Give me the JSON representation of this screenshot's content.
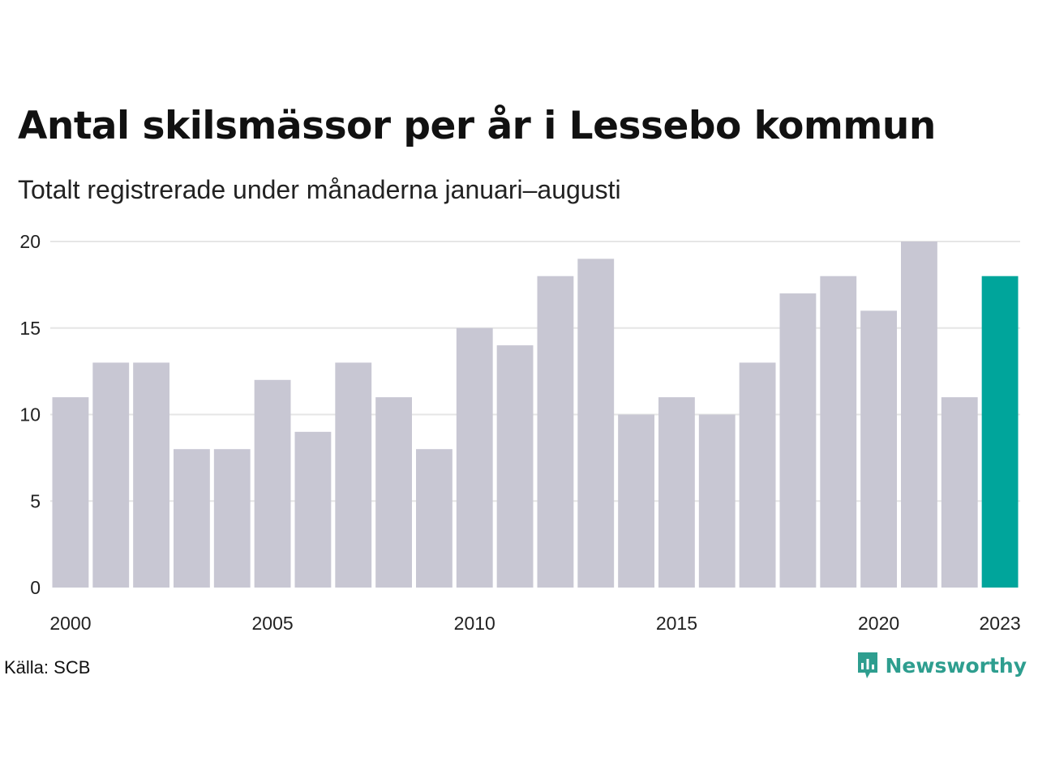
{
  "chart_data": {
    "type": "bar",
    "title": "Antal skilsmässor per år i Lessebo kommun",
    "subtitle": "Totalt registrerade under månaderna januari–augusti",
    "categories": [
      2000,
      2001,
      2002,
      2003,
      2004,
      2005,
      2006,
      2007,
      2008,
      2009,
      2010,
      2011,
      2012,
      2013,
      2014,
      2015,
      2016,
      2017,
      2018,
      2019,
      2020,
      2021,
      2022,
      2023
    ],
    "values": [
      11,
      13,
      13,
      8,
      8,
      12,
      9,
      13,
      11,
      8,
      15,
      14,
      18,
      19,
      10,
      11,
      10,
      13,
      17,
      18,
      16,
      20,
      11,
      18
    ],
    "highlight_category": 2023,
    "x_tick_labels": [
      "2000",
      "2005",
      "2010",
      "2015",
      "2020",
      "2023"
    ],
    "y_tick_labels": [
      "0",
      "5",
      "10",
      "15",
      "20"
    ],
    "ylim": [
      0,
      20
    ],
    "xlabel": "",
    "ylabel": "",
    "grid": true,
    "colors": {
      "bar": "#c8c7d3",
      "highlight": "#00a59b",
      "grid": "#e6e6e6"
    }
  },
  "source": "Källa: SCB",
  "brand": {
    "name": "Newsworthy",
    "icon": "bar-chart-speech-icon",
    "color": "#2e9e8f"
  }
}
